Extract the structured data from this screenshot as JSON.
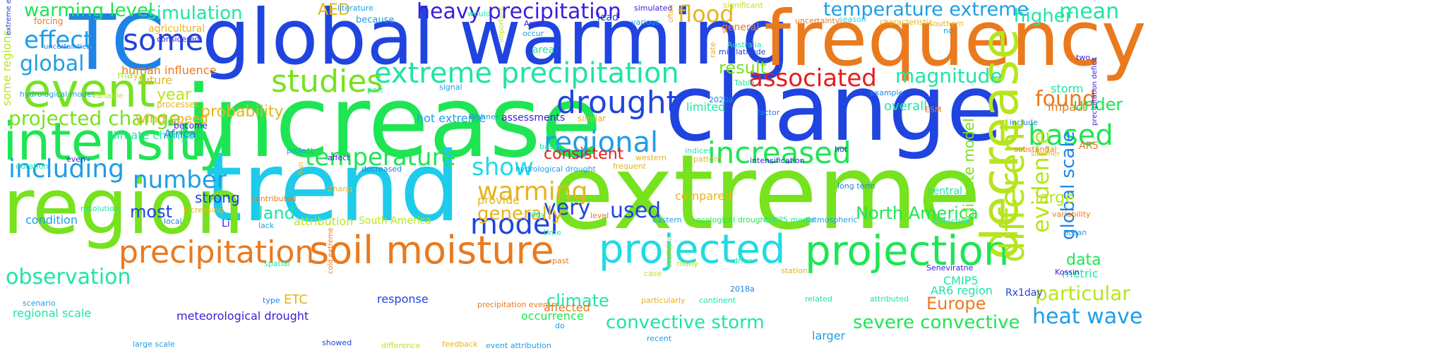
{
  "words": [
    {
      "text": "increase",
      "color": "#1ee553"
    },
    {
      "text": "change",
      "color": "#1f44df"
    },
    {
      "text": "global warming",
      "color": "#1f44df"
    },
    {
      "text": "extreme",
      "color": "#77e21e"
    },
    {
      "text": "trend",
      "color": "#1ecbea"
    },
    {
      "text": "frequency",
      "color": "#ea7a1e"
    },
    {
      "text": "TC",
      "color": "#1e83e5"
    },
    {
      "text": "region",
      "color": "#77e21e"
    },
    {
      "text": "intensity",
      "color": "#1ee553"
    },
    {
      "text": "event",
      "color": "#77e21e"
    },
    {
      "text": "decrease",
      "color": "#b6e51e"
    },
    {
      "text": "projection",
      "color": "#1ee553"
    },
    {
      "text": "soil moisture",
      "color": "#ea7a1e"
    },
    {
      "text": "projected",
      "color": "#1edbe5"
    },
    {
      "text": "precipitation",
      "color": "#ea7a1e"
    },
    {
      "text": "extreme precipitation",
      "color": "#1ee5a6"
    },
    {
      "text": "heavy precipitation",
      "color": "#3a1ed9"
    },
    {
      "text": "drought",
      "color": "#1f44df"
    },
    {
      "text": "regional",
      "color": "#1e9ee5"
    },
    {
      "text": "increased",
      "color": "#1ee553"
    },
    {
      "text": "different",
      "color": "#b6e51e"
    },
    {
      "text": "studies",
      "color": "#77e21e"
    },
    {
      "text": "some",
      "color": "#1f44df"
    },
    {
      "text": "effect",
      "color": "#1e9ee5"
    },
    {
      "text": "temperature",
      "color": "#1ee553"
    },
    {
      "text": "warming",
      "color": "#e5b41e"
    },
    {
      "text": "model",
      "color": "#1f44df"
    },
    {
      "text": "show",
      "color": "#1edbe5"
    },
    {
      "text": "including",
      "color": "#1e9ee5"
    },
    {
      "text": "number",
      "color": "#1e9ee5"
    },
    {
      "text": "observation",
      "color": "#1ee5a6"
    },
    {
      "text": "associated",
      "color": "#e51e1e"
    },
    {
      "text": "flood",
      "color": "#e5b41e"
    },
    {
      "text": "temperature extreme",
      "color": "#1e9ee5"
    },
    {
      "text": "based",
      "color": "#1ee553"
    },
    {
      "text": "evidence",
      "color": "#b6e51e"
    },
    {
      "text": "global scale",
      "color": "#1e83e5"
    },
    {
      "text": "climate model",
      "color": "#77e21e"
    },
    {
      "text": "magnitude",
      "color": "#1ee5a6"
    },
    {
      "text": "found",
      "color": "#ea7a1e"
    },
    {
      "text": "global",
      "color": "#1e9ee5"
    },
    {
      "text": "projected change",
      "color": "#77e21e"
    },
    {
      "text": "warming level",
      "color": "#1ee553"
    },
    {
      "text": "simulation",
      "color": "#1ee5a6"
    },
    {
      "text": "higher",
      "color": "#1ee5a6"
    },
    {
      "text": "mean",
      "color": "#1ee5a6"
    },
    {
      "text": "heat wave",
      "color": "#1e9ee5"
    },
    {
      "text": "particular",
      "color": "#b6e51e"
    },
    {
      "text": "convective storm",
      "color": "#1ee5a6"
    },
    {
      "text": "severe convective",
      "color": "#1ee553"
    },
    {
      "text": "North America",
      "color": "#1ee553"
    },
    {
      "text": "Europe",
      "color": "#ea7a1e"
    },
    {
      "text": "climate",
      "color": "#1ee5a6"
    },
    {
      "text": "used",
      "color": "#1f44df"
    },
    {
      "text": "very",
      "color": "#1f44df"
    },
    {
      "text": "generally",
      "color": "#e5b41e"
    },
    {
      "text": "consistent",
      "color": "#e51e1e"
    },
    {
      "text": "result",
      "color": "#77e21e"
    },
    {
      "text": "land",
      "color": "#1ee5a6"
    },
    {
      "text": "most",
      "color": "#1f44df"
    },
    {
      "text": "strong",
      "color": "#1f44df"
    },
    {
      "text": "under",
      "color": "#1ee553"
    },
    {
      "text": "data",
      "color": "#1ee553"
    },
    {
      "text": "large",
      "color": "#b6e51e"
    },
    {
      "text": "year",
      "color": "#b6e51e"
    },
    {
      "text": "probability",
      "color": "#e5b41e"
    },
    {
      "text": "AED",
      "color": "#e5b41e"
    },
    {
      "text": "storm",
      "color": "#1ee5a6"
    },
    {
      "text": "impact",
      "color": "#ea7a1e"
    },
    {
      "text": "overall",
      "color": "#1ee5a6"
    },
    {
      "text": "limited",
      "color": "#1ee5a6"
    },
    {
      "text": "lead",
      "color": "#1f44df"
    },
    {
      "text": "CMIP5",
      "color": "#1ee5a6"
    },
    {
      "text": "AR6 region",
      "color": "#1ee5a6"
    },
    {
      "text": "Rx1day",
      "color": "#1f44df"
    },
    {
      "text": "metric",
      "color": "#1ee5a6"
    },
    {
      "text": "ETC",
      "color": "#e5b41e"
    },
    {
      "text": "response",
      "color": "#1f44df"
    },
    {
      "text": "occurrence",
      "color": "#1ee553"
    },
    {
      "text": "meteorological drought",
      "color": "#3a1ed9"
    },
    {
      "text": "regional scale",
      "color": "#1ee5a6"
    },
    {
      "text": "condition",
      "color": "#1e9ee5"
    },
    {
      "text": "wind speed",
      "color": "#e5b41e"
    },
    {
      "text": "some regions",
      "color": "#b6e51e"
    },
    {
      "text": "future",
      "color": "#e5b41e"
    },
    {
      "text": "human influence",
      "color": "#ea7a1e"
    },
    {
      "text": "climate change",
      "color": "#1ee5a6"
    },
    {
      "text": "Africa",
      "color": "#1e83e5"
    },
    {
      "text": "hot extreme",
      "color": "#1e9ee5"
    },
    {
      "text": "assessments",
      "color": "#3a1ed9"
    },
    {
      "text": "compared",
      "color": "#e5b41e"
    },
    {
      "text": "provide",
      "color": "#e5b41e"
    },
    {
      "text": "attribution",
      "color": "#b6e51e"
    },
    {
      "text": "South America",
      "color": "#b6e51e"
    },
    {
      "text": "affected",
      "color": "#ea7a1e"
    },
    {
      "text": "larger",
      "color": "#1e9ee5"
    },
    {
      "text": "extreme event",
      "color": "#1f44df"
    },
    {
      "text": "forcing",
      "color": "#ea7a1e"
    },
    {
      "text": "uncertainties",
      "color": "#1e83e5"
    },
    {
      "text": "hydrological model",
      "color": "#1e9ee5"
    },
    {
      "text": "agricultural",
      "color": "#e5b41e"
    },
    {
      "text": "considered",
      "color": "#3a1ed9"
    },
    {
      "text": "may",
      "color": "#b6e51e"
    },
    {
      "text": "variable",
      "color": "#b6e51e"
    },
    {
      "text": "processes",
      "color": "#e5b41e"
    },
    {
      "text": "become",
      "color": "#3a1ed9"
    },
    {
      "text": "literature",
      "color": "#1e9ee5"
    },
    {
      "text": "because",
      "color": "#1e9ee5"
    },
    {
      "text": "would",
      "color": "#1ee5a6"
    },
    {
      "text": "important",
      "color": "#b6e51e"
    },
    {
      "text": "Asia",
      "color": "#3a1ed9"
    },
    {
      "text": "occur",
      "color": "#1e9ee5"
    },
    {
      "text": "area",
      "color": "#1ee5a6"
    },
    {
      "text": "signal",
      "color": "#1e9ee5"
    },
    {
      "text": "part",
      "color": "#1ee5a6"
    },
    {
      "text": "simulated",
      "color": "#3a1ed9"
    },
    {
      "text": "various",
      "color": "#1e9ee5"
    },
    {
      "text": "often",
      "color": "#e5b41e"
    },
    {
      "text": "significant",
      "color": "#b6e51e"
    },
    {
      "text": "general",
      "color": "#ea7a1e"
    },
    {
      "text": "Australia",
      "color": "#1ee5a6"
    },
    {
      "text": "mid latitude",
      "color": "#1f44df"
    },
    {
      "text": "rate",
      "color": "#e5b41e"
    },
    {
      "text": "Table",
      "color": "#1ee5a6"
    },
    {
      "text": "2020a",
      "color": "#1e83e5"
    },
    {
      "text": "uncertainty",
      "color": "#ea7a1e"
    },
    {
      "text": "season",
      "color": "#1edbe5"
    },
    {
      "text": "characteristic",
      "color": "#e5b41e"
    },
    {
      "text": "southern",
      "color": "#e5b41e"
    },
    {
      "text": "no",
      "color": "#1e9ee5"
    },
    {
      "text": "two",
      "color": "#3a1ed9"
    },
    {
      "text": "precipitation deficit",
      "color": "#3a1ed9"
    },
    {
      "text": "example",
      "color": "#1e83e5"
    },
    {
      "text": "ESM",
      "color": "#ea7a1e"
    },
    {
      "text": "factor",
      "color": "#1e83e5"
    },
    {
      "text": "Wehner",
      "color": "#1e9ee5"
    },
    {
      "text": "similar",
      "color": "#e5b41e"
    },
    {
      "text": "include",
      "color": "#1e83e5"
    },
    {
      "text": "substantial",
      "color": "#ea7a1e"
    },
    {
      "text": "summer",
      "color": "#e5b41e"
    },
    {
      "text": "AR5",
      "color": "#ea7a1e"
    },
    {
      "text": "duration",
      "color": "#1ee5a6"
    },
    {
      "text": "even",
      "color": "#3a1ed9"
    },
    {
      "text": "project",
      "color": "#1e9ee5"
    },
    {
      "text": "Sun",
      "color": "#e5b41e"
    },
    {
      "text": "affect",
      "color": "#3a1ed9"
    },
    {
      "text": "decreased",
      "color": "#1e83e5"
    },
    {
      "text": "basin",
      "color": "#1ee5a6"
    },
    {
      "text": "hydrological drought",
      "color": "#1e9ee5"
    },
    {
      "text": "frequent",
      "color": "#e5b41e"
    },
    {
      "text": "western",
      "color": "#e5b41e"
    },
    {
      "text": "indices",
      "color": "#1ee5a6"
    },
    {
      "text": "pattern",
      "color": "#e5b41e"
    },
    {
      "text": "hot",
      "color": "#3a1ed9"
    },
    {
      "text": "intensification",
      "color": "#3a1ed9"
    },
    {
      "text": "long term",
      "color": "#1e83e5"
    },
    {
      "text": "central",
      "color": "#1ee5a6"
    },
    {
      "text": "variability",
      "color": "#ea7a1e"
    },
    {
      "text": "detection",
      "color": "#1edbe5"
    },
    {
      "text": "ocean",
      "color": "#1e9ee5"
    },
    {
      "text": "Kossin",
      "color": "#3a1ed9"
    },
    {
      "text": "Seneviratne",
      "color": "#3a1ed9"
    },
    {
      "text": "resolution",
      "color": "#1ee5a6"
    },
    {
      "text": "local",
      "color": "#1e83e5"
    },
    {
      "text": "increasing",
      "color": "#e5b41e"
    },
    {
      "text": "contributed",
      "color": "#ea7a1e"
    },
    {
      "text": "Zhang",
      "color": "#e5b41e"
    },
    {
      "text": "lack",
      "color": "#1e9ee5"
    },
    {
      "text": "Li",
      "color": "#3a1ed9"
    },
    {
      "text": "day",
      "color": "#1ee5a6"
    },
    {
      "text": "level",
      "color": "#ea7a1e"
    },
    {
      "text": "eastern",
      "color": "#1e9ee5"
    },
    {
      "text": "ecological drought",
      "color": "#1ee553"
    },
    {
      "text": "CMIP5 model",
      "color": "#1ee5a6"
    },
    {
      "text": "atmospheric",
      "color": "#1e9ee5"
    },
    {
      "text": "time",
      "color": "#1ee5a6"
    },
    {
      "text": "spatial",
      "color": "#1ee5a6"
    },
    {
      "text": "cold extreme",
      "color": "#ea7a1e"
    },
    {
      "text": "past",
      "color": "#ea7a1e"
    },
    {
      "text": "case",
      "color": "#b6e51e"
    },
    {
      "text": "available",
      "color": "#b6e51e"
    },
    {
      "text": "many",
      "color": "#b6e51e"
    },
    {
      "text": "driver",
      "color": "#1ee5a6"
    },
    {
      "text": "station",
      "color": "#e5b41e"
    },
    {
      "text": "2018a",
      "color": "#1e83e5"
    },
    {
      "text": "type",
      "color": "#1e83e5"
    },
    {
      "text": "scenario",
      "color": "#1e9ee5"
    },
    {
      "text": "large scale",
      "color": "#1e9ee5"
    },
    {
      "text": "showed",
      "color": "#1f44df"
    },
    {
      "text": "difference",
      "color": "#b6e51e"
    },
    {
      "text": "feedback",
      "color": "#e5b41e"
    },
    {
      "text": "event attribution",
      "color": "#1e9ee5"
    },
    {
      "text": "precipitation event",
      "color": "#ea7a1e"
    },
    {
      "text": "do",
      "color": "#1e9ee5"
    },
    {
      "text": "particularly",
      "color": "#e5b41e"
    },
    {
      "text": "continent",
      "color": "#1ee5a6"
    },
    {
      "text": "recent",
      "color": "#1e9ee5"
    },
    {
      "text": "related",
      "color": "#1ee5a6"
    },
    {
      "text": "attributed",
      "color": "#1ee5a6"
    }
  ]
}
